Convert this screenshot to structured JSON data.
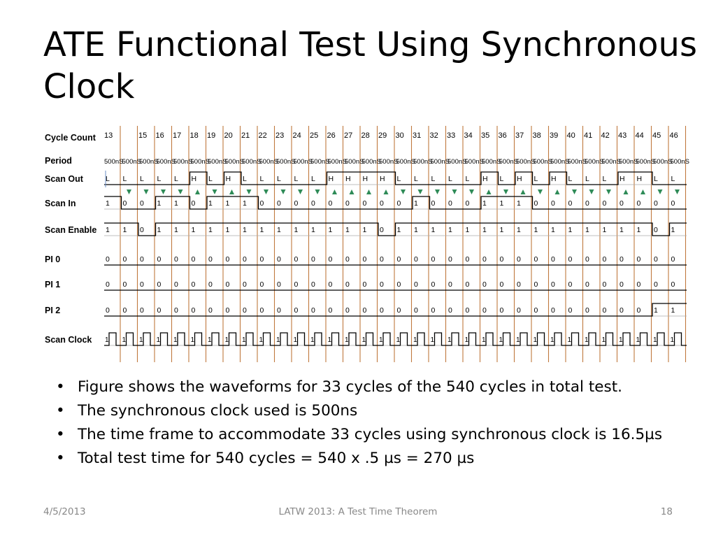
{
  "slide": {
    "title": "ATE Functional Test Using Synchronous Clock",
    "bullets": [
      "Figure shows the waveforms for 33 cycles of the 540 cycles in total test.",
      "The synchronous clock used is 500ns",
      "The time frame to accommodate 33 cycles using synchronous clock is 16.5µs",
      "Total test time for 540 cycles = 540 x .5 µs = 270 µs"
    ],
    "footer": {
      "date": "4/5/2013",
      "center": "LATW 2013: A Test Time Theorem",
      "page": "18"
    }
  },
  "figure": {
    "cycle_count_label": "Cycle Count",
    "period_label": "Period",
    "cycle_numbers": [
      "13",
      "15",
      "16",
      "17",
      "18",
      "19",
      "20",
      "21",
      "22",
      "23",
      "24",
      "25",
      "26",
      "27",
      "28",
      "29",
      "30",
      "31",
      "32",
      "33",
      "34",
      "35",
      "36",
      "37",
      "38",
      "39",
      "40",
      "41",
      "42",
      "43",
      "44",
      "45",
      "46"
    ],
    "period_value": "500nS",
    "colors": {
      "cycle_marker": "#c0793e",
      "grid": "#aaaaaa",
      "wave": "#000000",
      "strobe_low": "#2e8b57",
      "strobe_high": "#2e8b57",
      "cursor": "#6b8fc7"
    },
    "signals": [
      {
        "name": "Scan Out",
        "kind": "scanout",
        "values": [
          "L",
          "L",
          "L",
          "L",
          "L",
          "H",
          "L",
          "H",
          "L",
          "L",
          "L",
          "L",
          "L",
          "H",
          "H",
          "H",
          "H",
          "L",
          "L",
          "L",
          "L",
          "L",
          "H",
          "L",
          "H",
          "L",
          "H",
          "L",
          "L",
          "L",
          "H",
          "H",
          "L",
          "L"
        ]
      },
      {
        "name": "Scan In",
        "kind": "data",
        "values": [
          "1",
          "0",
          "0",
          "1",
          "1",
          "0",
          "1",
          "1",
          "1",
          "0",
          "0",
          "0",
          "0",
          "0",
          "0",
          "0",
          "0",
          "0",
          "1",
          "0",
          "0",
          "0",
          "1",
          "1",
          "1",
          "0",
          "0",
          "0",
          "0",
          "0",
          "0",
          "0",
          "0",
          "0"
        ]
      },
      {
        "name": "Scan Enable",
        "kind": "data",
        "values": [
          "1",
          "1",
          "0",
          "1",
          "1",
          "1",
          "1",
          "1",
          "1",
          "1",
          "1",
          "1",
          "1",
          "1",
          "1",
          "1",
          "0",
          "1",
          "1",
          "1",
          "1",
          "1",
          "1",
          "1",
          "1",
          "1",
          "1",
          "1",
          "1",
          "1",
          "1",
          "1",
          "0",
          "1"
        ]
      },
      {
        "name": "PI 0",
        "kind": "data",
        "values": [
          "0",
          "0",
          "0",
          "0",
          "0",
          "0",
          "0",
          "0",
          "0",
          "0",
          "0",
          "0",
          "0",
          "0",
          "0",
          "0",
          "0",
          "0",
          "0",
          "0",
          "0",
          "0",
          "0",
          "0",
          "0",
          "0",
          "0",
          "0",
          "0",
          "0",
          "0",
          "0",
          "0",
          "0"
        ]
      },
      {
        "name": "PI 1",
        "kind": "data",
        "values": [
          "0",
          "0",
          "0",
          "0",
          "0",
          "0",
          "0",
          "0",
          "0",
          "0",
          "0",
          "0",
          "0",
          "0",
          "0",
          "0",
          "0",
          "0",
          "0",
          "0",
          "0",
          "0",
          "0",
          "0",
          "0",
          "0",
          "0",
          "0",
          "0",
          "0",
          "0",
          "0",
          "0",
          "0"
        ]
      },
      {
        "name": "PI 2",
        "kind": "data",
        "values": [
          "0",
          "0",
          "0",
          "0",
          "0",
          "0",
          "0",
          "0",
          "0",
          "0",
          "0",
          "0",
          "0",
          "0",
          "0",
          "0",
          "0",
          "0",
          "0",
          "0",
          "0",
          "0",
          "0",
          "0",
          "0",
          "0",
          "0",
          "0",
          "0",
          "0",
          "0",
          "0",
          "1",
          "1"
        ]
      },
      {
        "name": "Scan Clock",
        "kind": "clock",
        "values": [
          "1",
          "1",
          "1",
          "1",
          "1",
          "1",
          "1",
          "1",
          "1",
          "1",
          "1",
          "1",
          "1",
          "1",
          "1",
          "1",
          "1",
          "1",
          "1",
          "1",
          "1",
          "1",
          "1",
          "1",
          "1",
          "1",
          "1",
          "1",
          "1",
          "1",
          "1",
          "1",
          "1",
          "1"
        ]
      }
    ]
  }
}
